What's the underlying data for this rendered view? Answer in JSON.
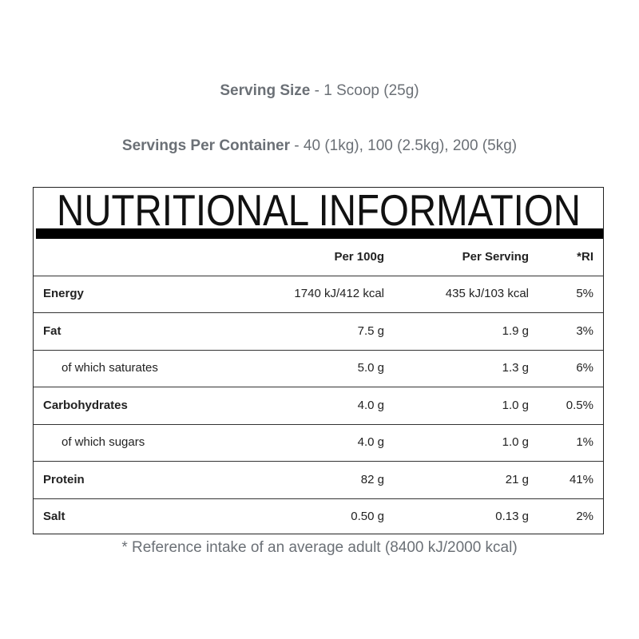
{
  "serving_size": {
    "label": "Serving Size",
    "value": " - 1 Scoop (25g)"
  },
  "servings_per_container": {
    "label": "Servings Per Container",
    "value": " - 40 (1kg), 100 (2.5kg), 200 (5kg)"
  },
  "panel": {
    "title": "NUTRITIONAL INFORMATION",
    "headers": [
      "",
      "Per 100g",
      "Per Serving",
      "*RI"
    ],
    "rows": [
      {
        "label": "Energy",
        "sub": false,
        "per100": "1740 kJ/412 kcal",
        "serving": "435 kJ/103 kcal",
        "ri": "5%"
      },
      {
        "label": "Fat",
        "sub": false,
        "per100": "7.5 g",
        "serving": "1.9 g",
        "ri": "3%"
      },
      {
        "label": "of which saturates",
        "sub": true,
        "per100": "5.0 g",
        "serving": "1.3 g",
        "ri": "6%"
      },
      {
        "label": "Carbohydrates",
        "sub": false,
        "per100": "4.0 g",
        "serving": "1.0 g",
        "ri": "0.5%"
      },
      {
        "label": "of which sugars",
        "sub": true,
        "per100": "4.0 g",
        "serving": "1.0 g",
        "ri": "1%"
      },
      {
        "label": "Protein",
        "sub": false,
        "per100": "82 g",
        "serving": "21 g",
        "ri": "41%"
      },
      {
        "label": "Salt",
        "sub": false,
        "per100": "0.50 g",
        "serving": "0.13 g",
        "ri": "2%"
      }
    ]
  },
  "footnote": "* Reference intake of an average adult (8400 kJ/2000 kcal)",
  "colors": {
    "info_text": "#6b7076",
    "table_text": "#222222",
    "bar": "#000000"
  }
}
